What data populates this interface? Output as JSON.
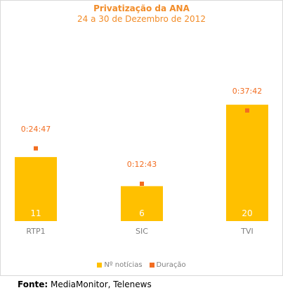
{
  "colors": {
    "bar": "#FFC000",
    "marker": "#F26D21",
    "text_accent": "#F28C28",
    "axis_label": "#7f7f7f",
    "bar_label": "#ffffff"
  },
  "chart_data": {
    "type": "bar",
    "title": "Privatização da ANA",
    "subtitle": "24 a 30 de Dezembro de 2012",
    "categories": [
      "RTP1",
      "SIC",
      "TVI"
    ],
    "series": [
      {
        "name": "Nº notícias",
        "type": "bar",
        "values": [
          11,
          6,
          20
        ],
        "labels": [
          "11",
          "6",
          "20"
        ]
      },
      {
        "name": "Duração",
        "type": "scatter",
        "values": [
          "0:24:47",
          "0:12:43",
          "0:37:42"
        ],
        "minutes": [
          24.78,
          12.72,
          37.7
        ]
      }
    ],
    "bar_ylim": [
      0,
      24.2
    ],
    "duration_ylim_minutes": [
      0,
      48
    ],
    "grid": false,
    "legend": "bottom"
  },
  "source": {
    "label": "Fonte:",
    "text": " MediaMonitor, Telenews"
  }
}
